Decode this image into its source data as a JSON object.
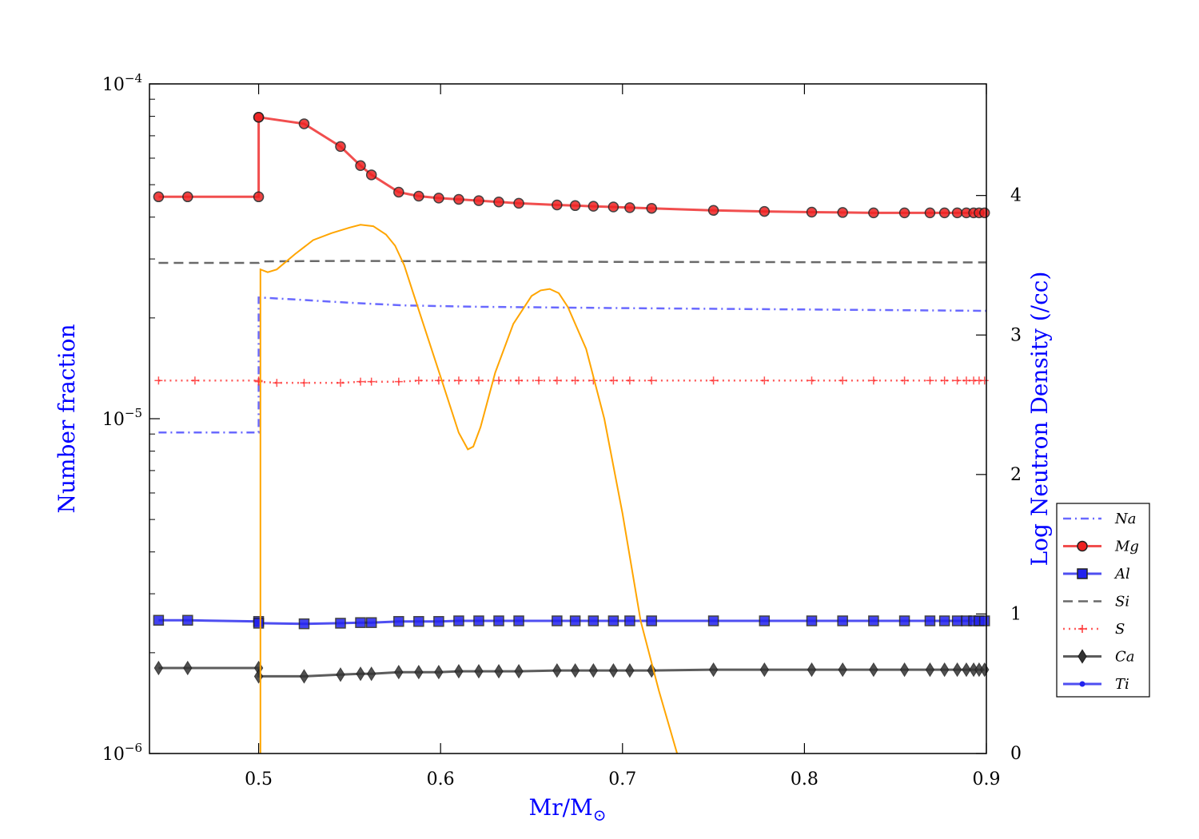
{
  "chart_data": {
    "type": "line",
    "xlabel_main": "Mr/M",
    "xlabel_sub": "⊙",
    "ylabel_left": "Number fraction",
    "ylabel_right": "Log Neutron Density (/cc)",
    "axis_label_color": "#0000ff",
    "xlim": [
      0.44,
      0.9
    ],
    "x_ticks": [
      0.5,
      0.6,
      0.7,
      0.8,
      0.9
    ],
    "x_tick_labels": [
      "0.5",
      "0.6",
      "0.7",
      "0.8",
      "0.9"
    ],
    "ylim_left": [
      1e-06,
      0.0001
    ],
    "y_left_scale": "log",
    "y_left_ticks": [
      1e-06,
      1e-05,
      0.0001
    ],
    "y_left_tick_labels": [
      {
        "base": "10",
        "exp": "−6"
      },
      {
        "base": "10",
        "exp": "−5"
      },
      {
        "base": "10",
        "exp": "−4"
      }
    ],
    "ylim_right": [
      0,
      4.8
    ],
    "y_right_ticks": [
      0,
      1,
      2,
      3,
      4
    ],
    "y_right_tick_labels": [
      "0",
      "1",
      "2",
      "3",
      "4"
    ],
    "grid": false,
    "legend_position": "right",
    "series": [
      {
        "name": "Na",
        "color": "#4444ff",
        "style": "dashdot",
        "marker": "none",
        "axis": "left",
        "x": [
          0.445,
          0.5,
          0.5,
          0.501,
          0.52,
          0.55,
          0.58,
          0.62,
          0.7,
          0.8,
          0.9
        ],
        "y": [
          9.1e-06,
          9.1e-06,
          2.3e-05,
          2.3e-05,
          2.27e-05,
          2.22e-05,
          2.18e-05,
          2.16e-05,
          2.14e-05,
          2.12e-05,
          2.1e-05
        ]
      },
      {
        "name": "Mg",
        "color": "#ee2222",
        "style": "solid",
        "marker": "circle",
        "axis": "left",
        "x": [
          0.445,
          0.461,
          0.5,
          0.5,
          0.5,
          0.525,
          0.545,
          0.556,
          0.562,
          0.577,
          0.588,
          0.599,
          0.61,
          0.621,
          0.632,
          0.643,
          0.664,
          0.674,
          0.684,
          0.695,
          0.704,
          0.716,
          0.75,
          0.778,
          0.804,
          0.821,
          0.838,
          0.855,
          0.869,
          0.877,
          0.884,
          0.889,
          0.893,
          0.896,
          0.899
        ],
        "y": [
          4.6e-05,
          4.6e-05,
          4.6e-05,
          7.95e-05,
          7.95e-05,
          7.6e-05,
          6.5e-05,
          5.7e-05,
          5.35e-05,
          4.75e-05,
          4.62e-05,
          4.56e-05,
          4.52e-05,
          4.48e-05,
          4.44e-05,
          4.4e-05,
          4.35e-05,
          4.33e-05,
          4.31e-05,
          4.29e-05,
          4.27e-05,
          4.25e-05,
          4.19e-05,
          4.16e-05,
          4.14e-05,
          4.13e-05,
          4.12e-05,
          4.12e-05,
          4.12e-05,
          4.12e-05,
          4.12e-05,
          4.12e-05,
          4.12e-05,
          4.12e-05,
          4.12e-05
        ]
      },
      {
        "name": "Al",
        "color": "#2222ee",
        "style": "solid",
        "marker": "square",
        "axis": "left",
        "x": [
          0.445,
          0.461,
          0.5,
          0.5,
          0.525,
          0.545,
          0.556,
          0.562,
          0.577,
          0.588,
          0.599,
          0.61,
          0.621,
          0.632,
          0.643,
          0.664,
          0.674,
          0.684,
          0.695,
          0.704,
          0.716,
          0.75,
          0.778,
          0.804,
          0.821,
          0.838,
          0.855,
          0.869,
          0.877,
          0.884,
          0.889,
          0.893,
          0.896,
          0.899
        ],
        "y": [
          2.5e-06,
          2.5e-06,
          2.48e-06,
          2.45e-06,
          2.44e-06,
          2.45e-06,
          2.46e-06,
          2.46e-06,
          2.48e-06,
          2.48e-06,
          2.48e-06,
          2.49e-06,
          2.49e-06,
          2.49e-06,
          2.49e-06,
          2.49e-06,
          2.49e-06,
          2.49e-06,
          2.49e-06,
          2.49e-06,
          2.49e-06,
          2.49e-06,
          2.49e-06,
          2.49e-06,
          2.49e-06,
          2.49e-06,
          2.49e-06,
          2.49e-06,
          2.49e-06,
          2.49e-06,
          2.49e-06,
          2.49e-06,
          2.49e-06,
          2.49e-06
        ]
      },
      {
        "name": "Si",
        "color": "#444444",
        "style": "dashed",
        "marker": "none",
        "axis": "left",
        "x": [
          0.445,
          0.5,
          0.501,
          0.55,
          0.7,
          0.9
        ],
        "y": [
          2.92e-05,
          2.92e-05,
          2.95e-05,
          2.96e-05,
          2.94e-05,
          2.93e-05
        ]
      },
      {
        "name": "S",
        "color": "#ff3333",
        "style": "dotted",
        "marker": "plus",
        "axis": "left",
        "x": [
          0.445,
          0.465,
          0.5,
          0.5,
          0.51,
          0.525,
          0.545,
          0.556,
          0.562,
          0.577,
          0.588,
          0.599,
          0.61,
          0.621,
          0.632,
          0.643,
          0.654,
          0.664,
          0.674,
          0.684,
          0.695,
          0.704,
          0.716,
          0.75,
          0.778,
          0.804,
          0.821,
          0.838,
          0.855,
          0.869,
          0.877,
          0.884,
          0.889,
          0.893,
          0.896,
          0.899
        ],
        "y": [
          1.3e-05,
          1.3e-05,
          1.3e-05,
          1.29e-05,
          1.28e-05,
          1.28e-05,
          1.28e-05,
          1.29e-05,
          1.29e-05,
          1.29e-05,
          1.3e-05,
          1.3e-05,
          1.3e-05,
          1.3e-05,
          1.3e-05,
          1.3e-05,
          1.3e-05,
          1.3e-05,
          1.3e-05,
          1.3e-05,
          1.3e-05,
          1.3e-05,
          1.3e-05,
          1.3e-05,
          1.3e-05,
          1.3e-05,
          1.3e-05,
          1.3e-05,
          1.3e-05,
          1.3e-05,
          1.3e-05,
          1.3e-05,
          1.3e-05,
          1.3e-05,
          1.3e-05,
          1.3e-05
        ]
      },
      {
        "name": "Ca",
        "color": "#333333",
        "style": "solid",
        "marker": "diamond",
        "axis": "left",
        "x": [
          0.445,
          0.461,
          0.5,
          0.5,
          0.525,
          0.545,
          0.556,
          0.562,
          0.577,
          0.588,
          0.599,
          0.61,
          0.621,
          0.632,
          0.643,
          0.664,
          0.674,
          0.684,
          0.695,
          0.704,
          0.716,
          0.75,
          0.778,
          0.804,
          0.821,
          0.838,
          0.855,
          0.869,
          0.877,
          0.884,
          0.889,
          0.893,
          0.896,
          0.899
        ],
        "y": [
          1.8e-06,
          1.8e-06,
          1.8e-06,
          1.7e-06,
          1.7e-06,
          1.72e-06,
          1.73e-06,
          1.73e-06,
          1.75e-06,
          1.75e-06,
          1.75e-06,
          1.76e-06,
          1.76e-06,
          1.76e-06,
          1.76e-06,
          1.77e-06,
          1.77e-06,
          1.77e-06,
          1.77e-06,
          1.77e-06,
          1.77e-06,
          1.78e-06,
          1.78e-06,
          1.78e-06,
          1.78e-06,
          1.78e-06,
          1.78e-06,
          1.78e-06,
          1.78e-06,
          1.78e-06,
          1.78e-06,
          1.78e-06,
          1.78e-06,
          1.78e-06
        ]
      },
      {
        "name": "Ti",
        "color": "#2222ee",
        "style": "solid",
        "marker": "dot",
        "axis": "left",
        "x": [],
        "y": []
      },
      {
        "name": "",
        "color": "#ffa500",
        "style": "solid",
        "marker": "none",
        "axis": "right",
        "x": [
          0.501,
          0.501,
          0.505,
          0.51,
          0.52,
          0.53,
          0.54,
          0.55,
          0.556,
          0.563,
          0.57,
          0.575,
          0.58,
          0.585,
          0.59,
          0.6,
          0.61,
          0.615,
          0.618,
          0.622,
          0.63,
          0.64,
          0.65,
          0.655,
          0.66,
          0.665,
          0.67,
          0.68,
          0.69,
          0.7,
          0.71,
          0.72,
          0.73
        ],
        "y": [
          0.0,
          3.47,
          3.45,
          3.47,
          3.58,
          3.68,
          3.73,
          3.77,
          3.79,
          3.78,
          3.72,
          3.64,
          3.5,
          3.3,
          3.1,
          2.7,
          2.3,
          2.18,
          2.2,
          2.34,
          2.73,
          3.08,
          3.28,
          3.32,
          3.33,
          3.3,
          3.2,
          2.9,
          2.4,
          1.72,
          0.95,
          0.45,
          0.0
        ]
      }
    ]
  }
}
